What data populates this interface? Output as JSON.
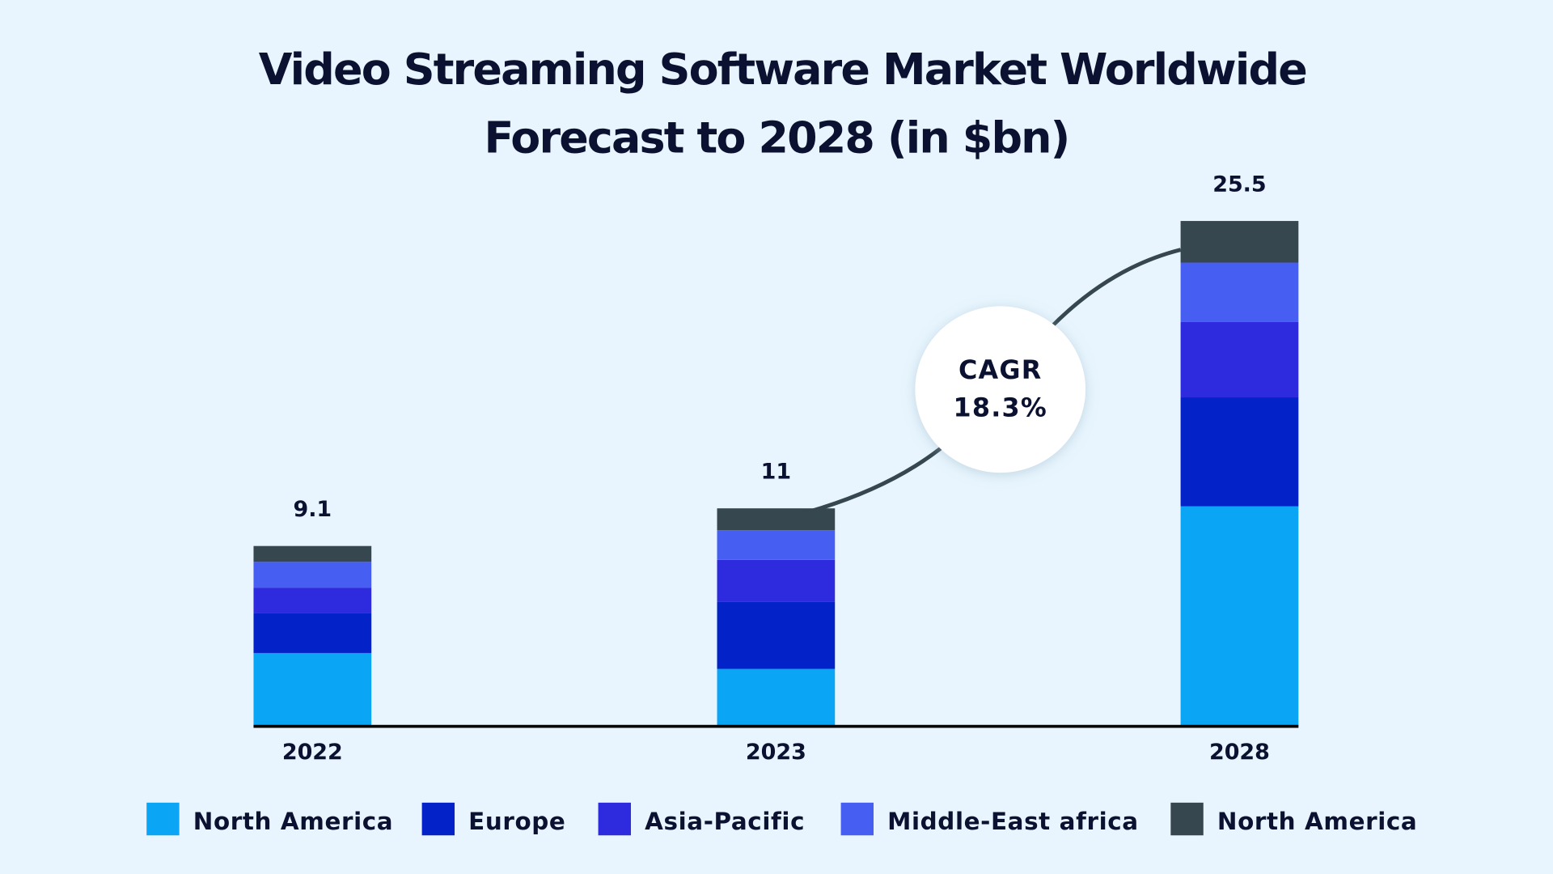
{
  "chart_data": {
    "type": "bar",
    "stacked": true,
    "title": "Video Streaming Software Market Worldwide Forecast to 2028 (in $bn)",
    "title_lines": [
      "Video Streaming Software Market Worldwide",
      "Forecast to 2028 (in $bn)"
    ],
    "categories": [
      "2022",
      "2023",
      "2028"
    ],
    "totals": [
      9.1,
      11,
      25.5
    ],
    "total_labels": [
      "9.1",
      "11",
      "25.5"
    ],
    "series": [
      {
        "name": "North America",
        "color": "#0AA6F5",
        "values": [
          3.7,
          2.9,
          11.1
        ]
      },
      {
        "name": "Europe",
        "color": "#0323C8",
        "values": [
          2.0,
          3.4,
          5.5
        ]
      },
      {
        "name": "Asia-Pacific",
        "color": "#2E2BDE",
        "values": [
          1.3,
          2.1,
          3.8
        ]
      },
      {
        "name": "Middle-East africa",
        "color": "#465EF2",
        "values": [
          1.3,
          1.5,
          3.0
        ]
      },
      {
        "name": "North America",
        "color": "#36474F",
        "values": [
          0.8,
          1.1,
          2.1
        ]
      }
    ],
    "annotation": {
      "line1": "CAGR",
      "line2": "18.3%"
    },
    "xlabel": "",
    "ylabel": "",
    "ylim": [
      0,
      25.5
    ],
    "grid": false,
    "legend": "bottom"
  }
}
